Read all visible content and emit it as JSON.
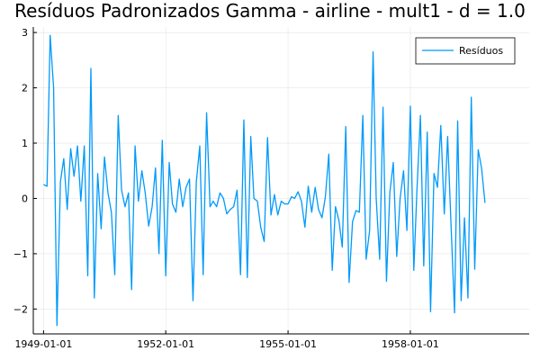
{
  "chart_data": {
    "type": "line",
    "title": "Resíduos Padronizados Gamma - airline - mult1 - d = 1.0",
    "xlabel": "",
    "ylabel": "",
    "x_start": "1949-01-01",
    "x_frequency": "monthly",
    "xlim": [
      "1948-10-01",
      "1960-12-01"
    ],
    "ylim": [
      -2.45,
      3.1
    ],
    "x_ticks": [
      "1949-01-01",
      "1952-01-01",
      "1955-01-01",
      "1958-01-01"
    ],
    "y_ticks": [
      -2,
      -1,
      0,
      1,
      2,
      3
    ],
    "y_tick_labels": [
      "−2",
      "−1",
      "0",
      "1",
      "2",
      "3"
    ],
    "grid": true,
    "legend_position": "top-right",
    "series": [
      {
        "name": "Resíduos",
        "color": "#009AFA",
        "values": [
          0.25,
          0.22,
          2.95,
          2.0,
          -2.3,
          0.3,
          0.72,
          -0.2,
          0.9,
          0.4,
          0.95,
          -0.05,
          0.95,
          -1.4,
          2.35,
          -1.8,
          0.45,
          -0.55,
          0.75,
          0.1,
          -0.25,
          -1.38,
          1.5,
          0.15,
          -0.15,
          0.1,
          -1.65,
          0.95,
          -0.05,
          0.5,
          0.1,
          -0.5,
          -0.15,
          0.55,
          -1.0,
          1.05,
          -1.4,
          0.65,
          -0.1,
          -0.25,
          0.35,
          -0.15,
          0.2,
          0.35,
          -1.85,
          0.3,
          0.95,
          -1.38,
          1.55,
          -0.15,
          -0.05,
          -0.15,
          0.1,
          0.0,
          -0.28,
          -0.2,
          -0.15,
          0.15,
          -1.38,
          1.42,
          -1.43,
          1.12,
          0.0,
          -0.05,
          -0.52,
          -0.78,
          1.1,
          -0.3,
          0.07,
          -0.3,
          -0.05,
          -0.1,
          -0.1,
          0.03,
          0.0,
          0.12,
          -0.05,
          -0.52,
          0.22,
          -0.25,
          0.2,
          -0.2,
          -0.35,
          0.02,
          0.8,
          -1.3,
          -0.15,
          -0.4,
          -0.88,
          1.3,
          -1.52,
          -0.42,
          -0.22,
          -0.25,
          1.5,
          -1.1,
          -0.58,
          2.65,
          0.0,
          -1.1,
          1.65,
          -1.5,
          0.1,
          0.65,
          -1.05,
          0.0,
          0.5,
          -0.58,
          1.67,
          -1.3,
          0.15,
          1.5,
          -1.22,
          1.2,
          -2.05,
          0.45,
          0.2,
          1.32,
          -0.28,
          1.12,
          -0.5,
          -2.07,
          1.4,
          -1.85,
          -0.35,
          -1.8,
          1.83,
          -1.28,
          0.88,
          0.55,
          -0.08
        ]
      }
    ]
  }
}
